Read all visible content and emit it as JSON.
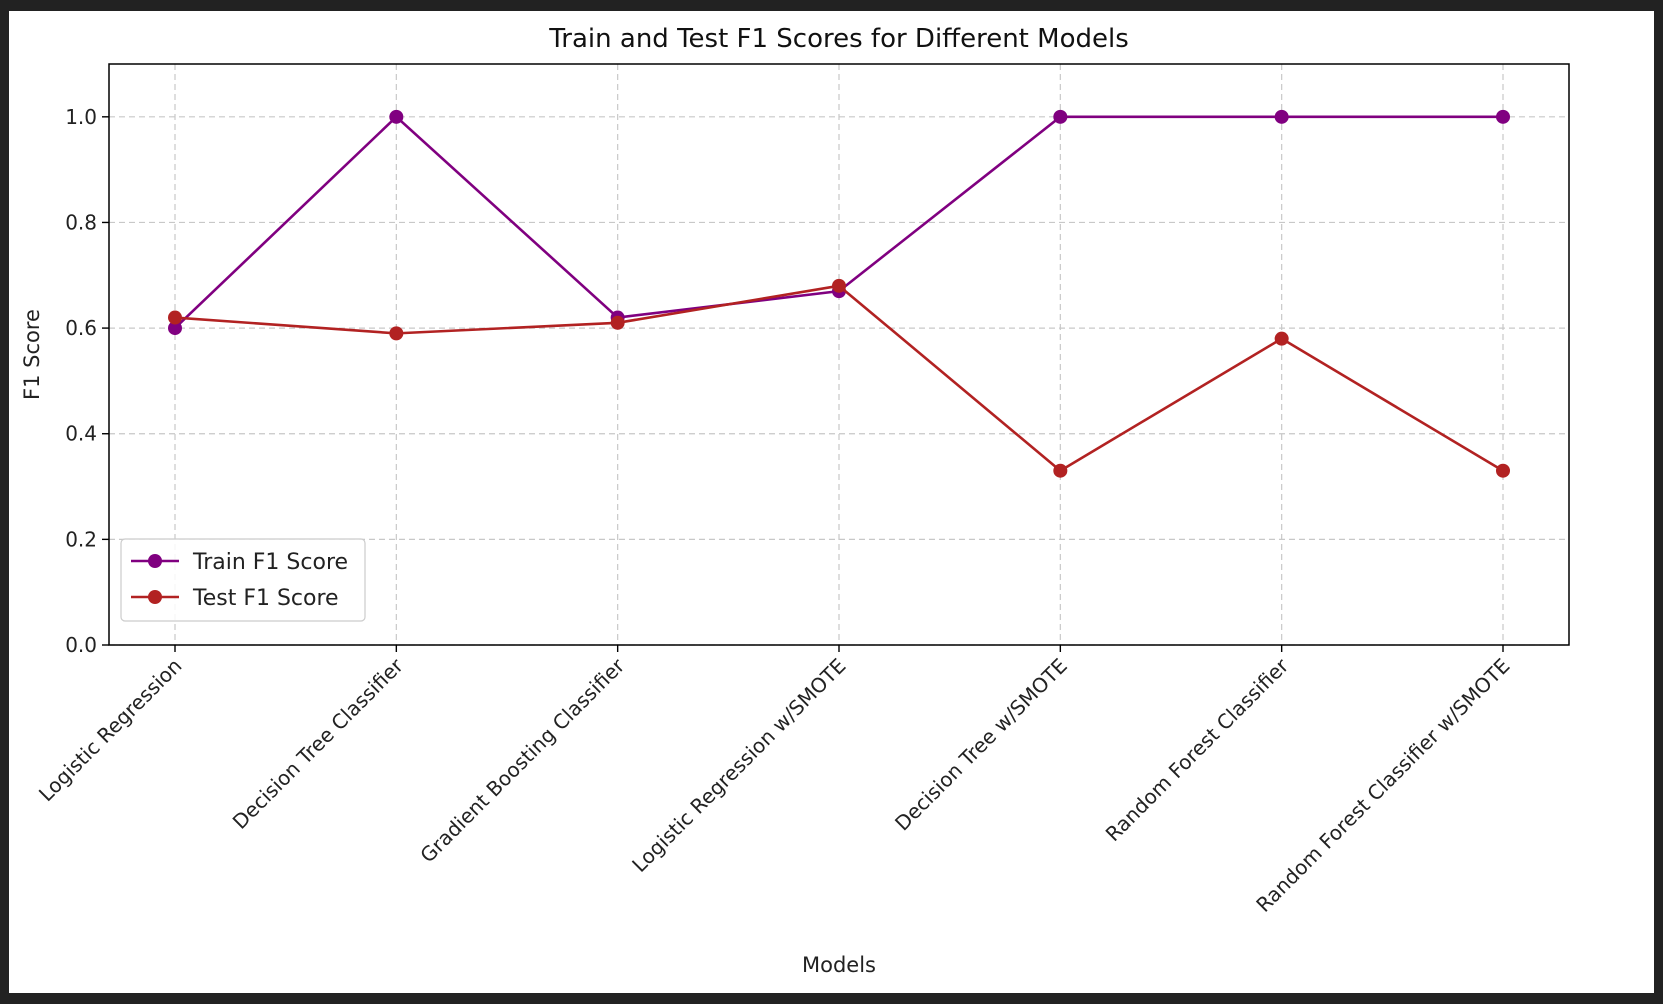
{
  "chart_data": {
    "type": "line",
    "title": "Train and Test F1 Scores for Different Models",
    "xlabel": "Models",
    "ylabel": "F1 Score",
    "ylim": [
      0,
      1.1
    ],
    "yticks": [
      "0.0",
      "0.2",
      "0.4",
      "0.6",
      "0.8",
      "1.0"
    ],
    "grid": true,
    "legend_position": "bottom-left",
    "categories": [
      "Logistic Regression",
      "Decision Tree Classifier",
      "Gradient Boosting Classifier",
      "Logistic Regression w/SMOTE",
      "Decision Tree w/SMOTE",
      "Random Forest Classifier",
      "Random Forest Classifier w/SMOTE"
    ],
    "series": [
      {
        "name": "Train F1 Score",
        "color": "#800080",
        "values": [
          0.6,
          1.0,
          0.62,
          0.67,
          1.0,
          1.0,
          1.0
        ]
      },
      {
        "name": "Test F1 Score",
        "color": "#B22222",
        "values": [
          0.62,
          0.59,
          0.61,
          0.68,
          0.33,
          0.58,
          0.33
        ]
      }
    ]
  }
}
